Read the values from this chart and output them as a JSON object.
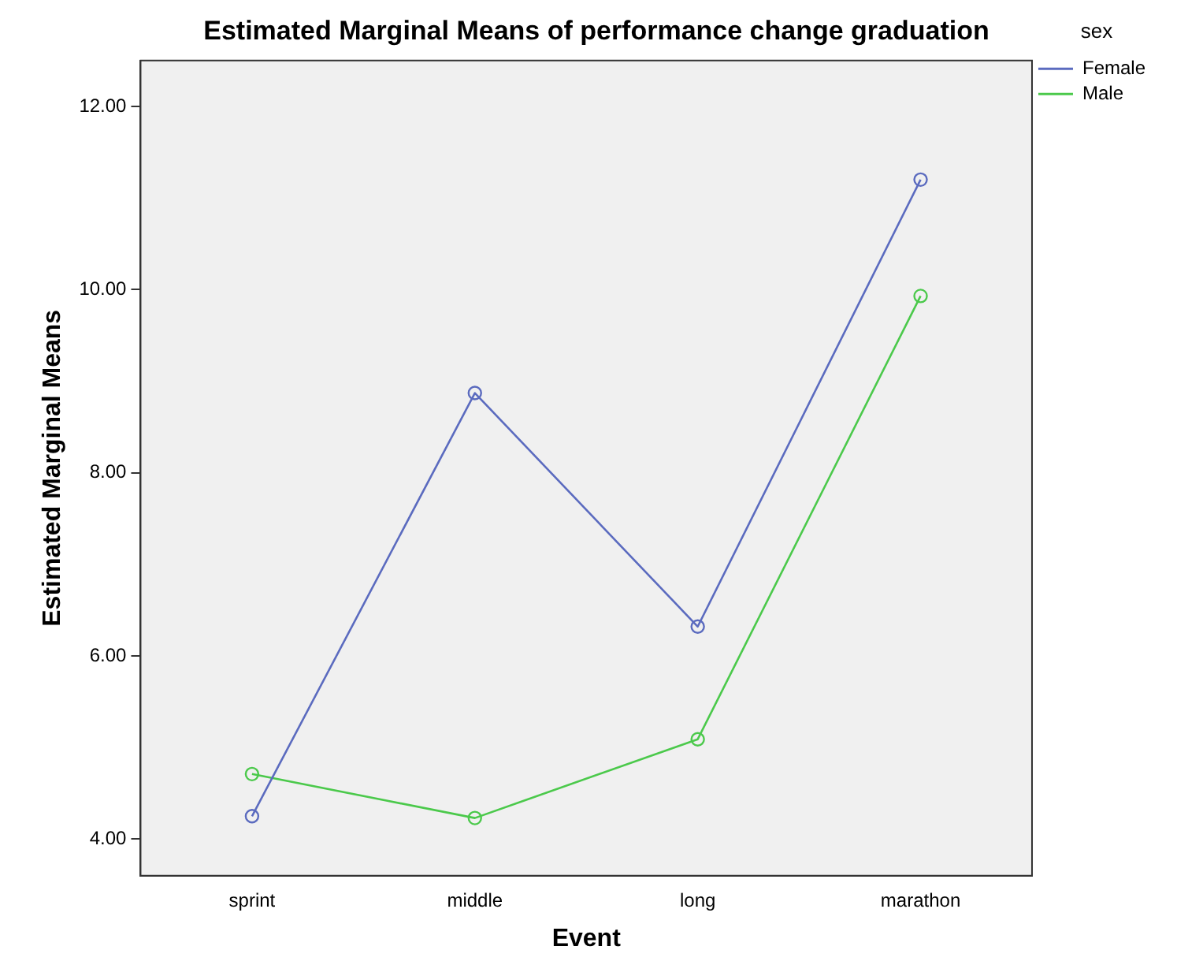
{
  "chart_data": {
    "type": "line",
    "title": "Estimated Marginal Means of performance change graduation",
    "xlabel": "Event",
    "ylabel": "Estimated Marginal Means",
    "legend_title": "sex",
    "categories": [
      "sprint",
      "middle",
      "long",
      "marathon"
    ],
    "series": [
      {
        "name": "Female",
        "color": "#5b6bbf",
        "values": [
          4.25,
          8.87,
          6.32,
          11.2
        ]
      },
      {
        "name": "Male",
        "color": "#4bc94b",
        "values": [
          4.71,
          4.23,
          5.09,
          9.93
        ]
      }
    ],
    "ylim": [
      3.6,
      12.5
    ],
    "yticks": [
      {
        "value": 4,
        "label": "4.00"
      },
      {
        "value": 6,
        "label": "6.00"
      },
      {
        "value": 8,
        "label": "8.00"
      },
      {
        "value": 10,
        "label": "10.00"
      },
      {
        "value": 12,
        "label": "12.00"
      }
    ],
    "grid": false,
    "legend": "top right",
    "marker": "circle",
    "line_style": "solid"
  }
}
